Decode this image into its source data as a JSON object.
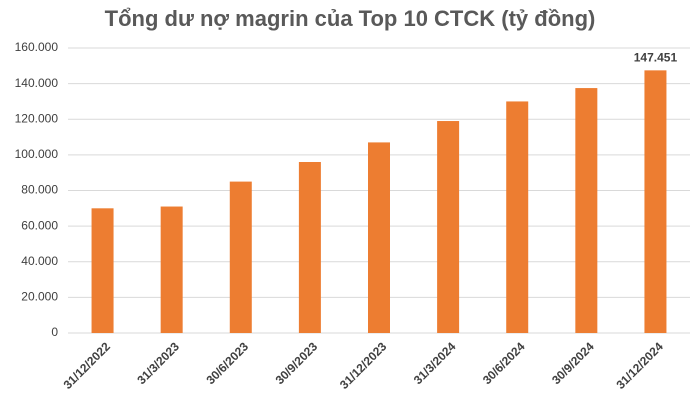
{
  "chart_data": {
    "type": "bar",
    "title": "Tổng dư nợ magrin của Top 10 CTCK (tỷ đồng)",
    "categories": [
      "31/12/2022",
      "31/3/2023",
      "30/6/2023",
      "30/9/2023",
      "31/12/2023",
      "31/3/2024",
      "30/6/2024",
      "30/9/2024",
      "31/12/2024"
    ],
    "values": [
      70000,
      71000,
      85000,
      96000,
      107000,
      119000,
      130000,
      137500,
      147451
    ],
    "value_labels": [
      null,
      null,
      null,
      null,
      null,
      null,
      null,
      null,
      "147.451"
    ],
    "color": "#ed7d31",
    "ylim": [
      0,
      160000
    ],
    "yticks": [
      {
        "value": 0,
        "label": "0"
      },
      {
        "value": 20000,
        "label": "20.000"
      },
      {
        "value": 40000,
        "label": "40.000"
      },
      {
        "value": 60000,
        "label": "60.000"
      },
      {
        "value": 80000,
        "label": "80.000"
      },
      {
        "value": 100000,
        "label": "100.000"
      },
      {
        "value": 120000,
        "label": "120.000"
      },
      {
        "value": 140000,
        "label": "140.000"
      },
      {
        "value": 160000,
        "label": "160.000"
      }
    ],
    "grid": true
  }
}
